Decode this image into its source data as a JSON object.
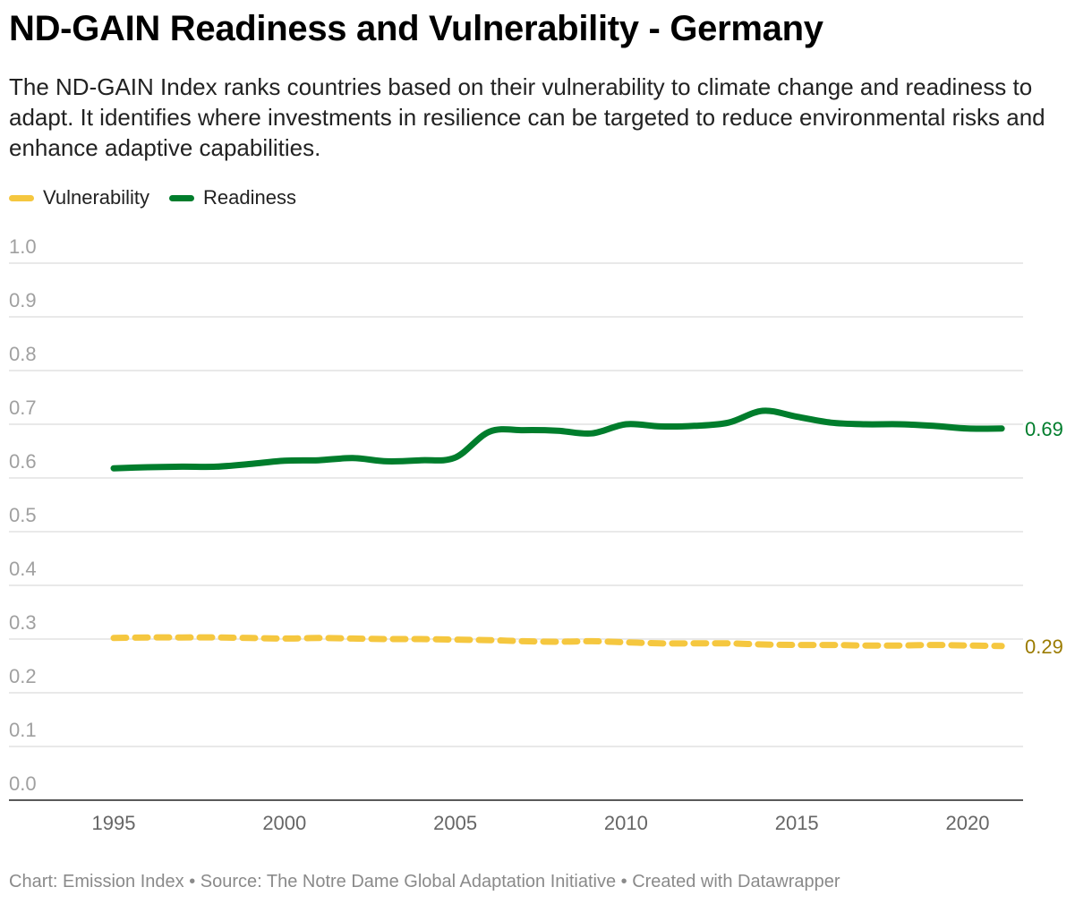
{
  "title": "ND-GAIN Readiness and Vulnerability - Germany",
  "subtitle": "The ND-GAIN Index ranks countries based on their vulnerability to climate change and readiness to adapt. It identifies where investments in resilience can be targeted to reduce environmental risks and enhance adaptive capabilities.",
  "footer": "Chart: Emission Index • Source: The Notre Dame Global Adaptation Initiative • Created with Datawrapper",
  "chart_data": {
    "type": "line",
    "x": [
      1995,
      1996,
      1997,
      1998,
      1999,
      2000,
      2001,
      2002,
      2003,
      2004,
      2005,
      2006,
      2007,
      2008,
      2009,
      2010,
      2011,
      2012,
      2013,
      2014,
      2015,
      2016,
      2017,
      2018,
      2019,
      2020,
      2021
    ],
    "series": [
      {
        "name": "Vulnerability",
        "color": "#f5c73f",
        "label_color": "#9b7b00",
        "end_label": "0.29",
        "style": "dashed",
        "values": [
          0.302,
          0.303,
          0.303,
          0.303,
          0.302,
          0.301,
          0.302,
          0.301,
          0.3,
          0.3,
          0.299,
          0.298,
          0.296,
          0.295,
          0.296,
          0.294,
          0.292,
          0.292,
          0.292,
          0.29,
          0.289,
          0.289,
          0.288,
          0.288,
          0.289,
          0.288,
          0.287
        ]
      },
      {
        "name": "Readiness",
        "color": "#007d2c",
        "label_color": "#007d2c",
        "end_label": "0.69",
        "style": "solid",
        "values": [
          0.618,
          0.62,
          0.621,
          0.621,
          0.626,
          0.632,
          0.633,
          0.637,
          0.631,
          0.633,
          0.638,
          0.686,
          0.689,
          0.688,
          0.683,
          0.7,
          0.696,
          0.697,
          0.703,
          0.725,
          0.714,
          0.703,
          0.7,
          0.7,
          0.697,
          0.692,
          0.692
        ]
      }
    ],
    "yticks": [
      "0.0",
      "0.1",
      "0.2",
      "0.3",
      "0.4",
      "0.5",
      "0.6",
      "0.7",
      "0.8",
      "0.9",
      "1.0"
    ],
    "xticks": [
      "1995",
      "2000",
      "2005",
      "2010",
      "2015",
      "2020"
    ],
    "ylim": [
      0,
      1
    ],
    "grid": true,
    "legend": "top-left"
  }
}
